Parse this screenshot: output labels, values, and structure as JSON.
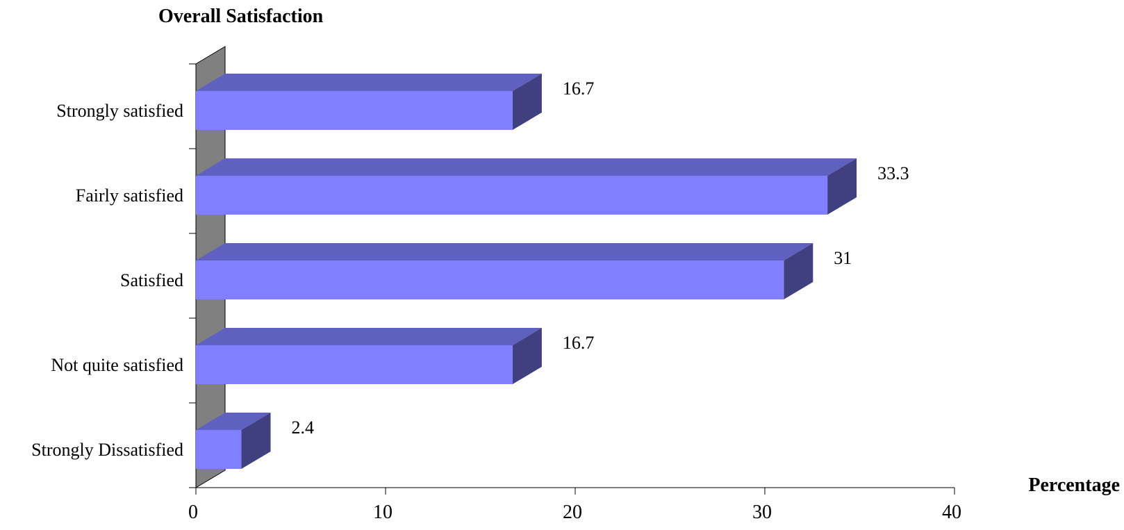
{
  "chart_data": {
    "type": "bar",
    "orientation": "horizontal",
    "style": "3d",
    "title": "Overall Satisfaction",
    "xlabel": "Percentage",
    "ylabel": "",
    "categories": [
      "Strongly satisfied",
      "Fairly satisfied",
      "Satisfied",
      "Not quite satisfied",
      "Strongly Dissatisfied"
    ],
    "values": [
      16.7,
      33.3,
      31,
      16.7,
      2.4
    ],
    "value_labels": [
      "16.7",
      "33.3",
      "31",
      "16.7",
      "2.4"
    ],
    "xlim": [
      0,
      40
    ],
    "xticks": [
      "0",
      "10",
      "20",
      "30",
      "40"
    ],
    "grid": false,
    "legend": "none",
    "colors": {
      "bar_front": "#8080ff",
      "bar_top": "#6060c0",
      "bar_side": "#404080",
      "wall": "#808080"
    }
  }
}
